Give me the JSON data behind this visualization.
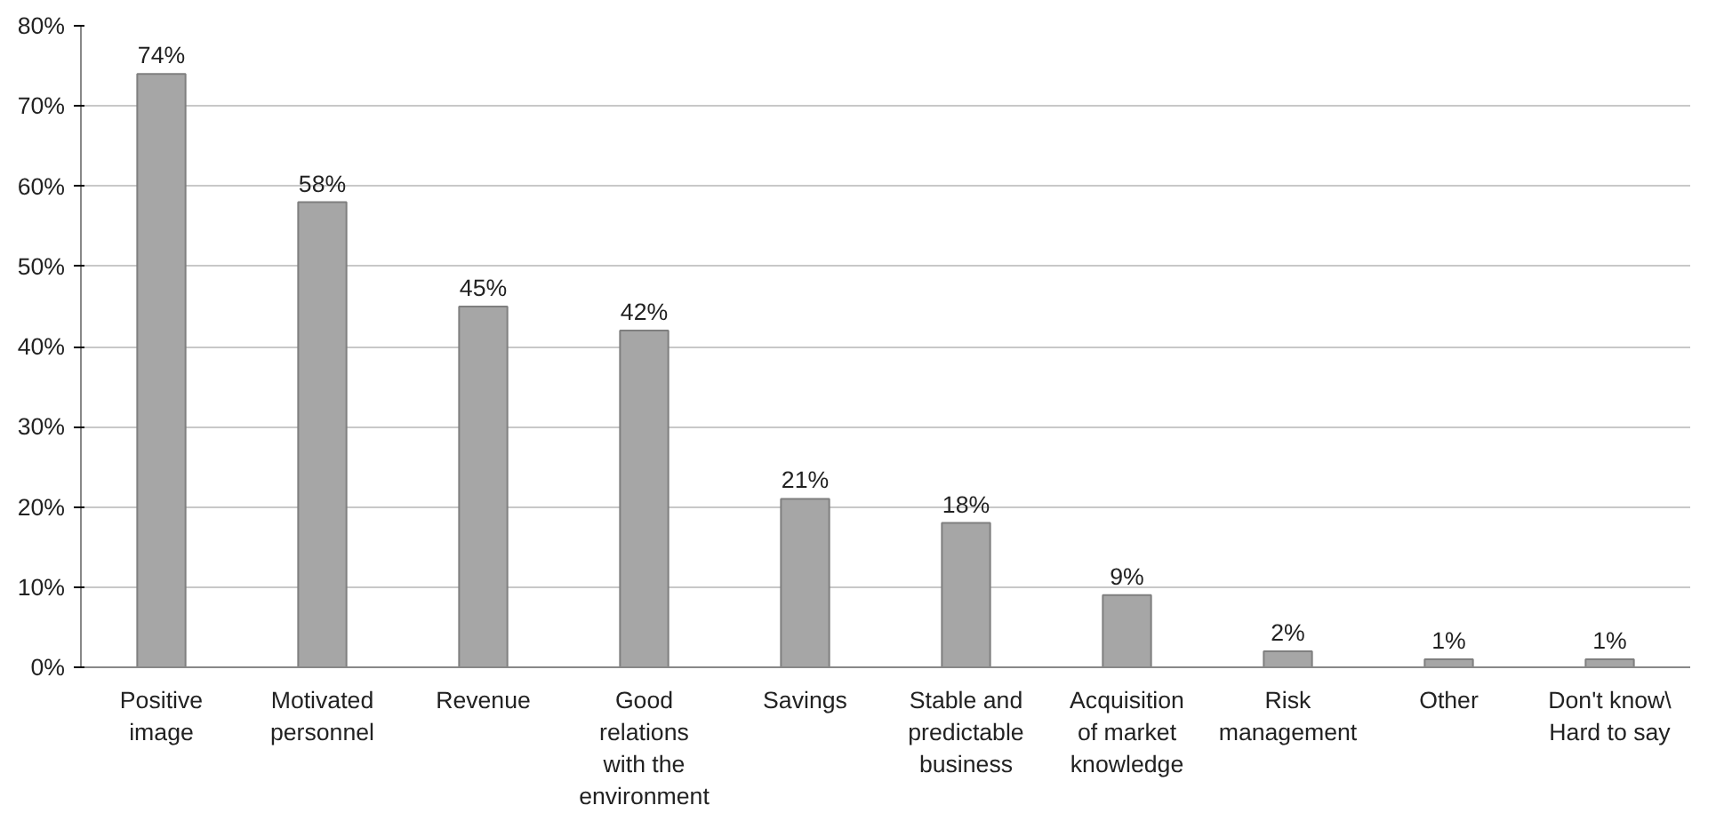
{
  "chart_data": {
    "type": "bar",
    "categories": [
      "Positive image",
      "Motivated personnel",
      "Revenue",
      "Good relations with the environment",
      "Savings",
      "Stable and predictable business",
      "Acquisition of market knowledge",
      "Risk management",
      "Other",
      "Don't know\\ Hard to say"
    ],
    "values": [
      74,
      58,
      45,
      42,
      21,
      18,
      9,
      2,
      1,
      1
    ],
    "value_labels": [
      "74%",
      "58%",
      "45%",
      "42%",
      "21%",
      "18%",
      "9%",
      "2%",
      "1%",
      "1%"
    ],
    "color": "#a6a6a6",
    "ylim": [
      0,
      80
    ],
    "yticks": [
      {
        "value": 0,
        "label": "0%"
      },
      {
        "value": 10,
        "label": "10%"
      },
      {
        "value": 20,
        "label": "20%"
      },
      {
        "value": 30,
        "label": "30%"
      },
      {
        "value": 40,
        "label": "40%"
      },
      {
        "value": 50,
        "label": "50%"
      },
      {
        "value": 60,
        "label": "60%"
      },
      {
        "value": 70,
        "label": "70%"
      },
      {
        "value": 80,
        "label": "80%"
      }
    ],
    "grid": "y"
  }
}
